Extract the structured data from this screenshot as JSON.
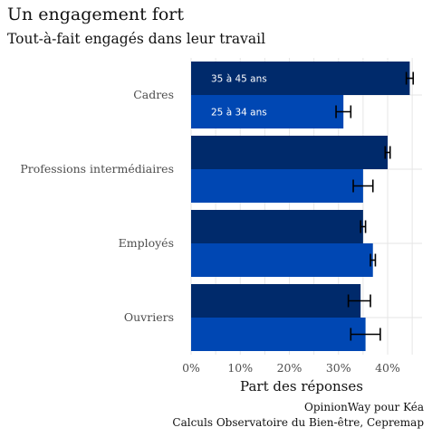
{
  "chart_data": {
    "type": "bar",
    "orientation": "horizontal",
    "title": "Un engagement fort",
    "subtitle": "Tout-à-fait engagés dans leur travail",
    "xlabel": "Part des réponses",
    "ylabel": "",
    "categories": [
      "Cadres",
      "Professions intermédiaires",
      "Employés",
      "Ouvriers"
    ],
    "series": [
      {
        "name": "35 à 45 ans",
        "color": "#002a6b",
        "values": [
          44.5,
          40.0,
          35.0,
          34.5
        ],
        "err_low": [
          43.8,
          39.5,
          34.5,
          32.0
        ],
        "err_high": [
          45.2,
          40.5,
          35.5,
          36.5
        ]
      },
      {
        "name": "25 à 34 ans",
        "color": "#0047b3",
        "values": [
          31.0,
          35.0,
          37.0,
          35.5
        ],
        "err_low": [
          29.5,
          33.0,
          36.5,
          32.5
        ],
        "err_high": [
          32.5,
          37.0,
          37.5,
          38.5
        ]
      }
    ],
    "xlim": [
      0,
      47
    ],
    "xticks": [
      0,
      10,
      20,
      30,
      40
    ],
    "xtick_labels": [
      "0%",
      "10%",
      "20%",
      "30%",
      "40%"
    ],
    "grid": true,
    "legend": "inside-first-group",
    "caption": [
      "OpinionWay pour Kéa",
      "Calculs Observatoire du Bien-être, Cepremap"
    ]
  }
}
